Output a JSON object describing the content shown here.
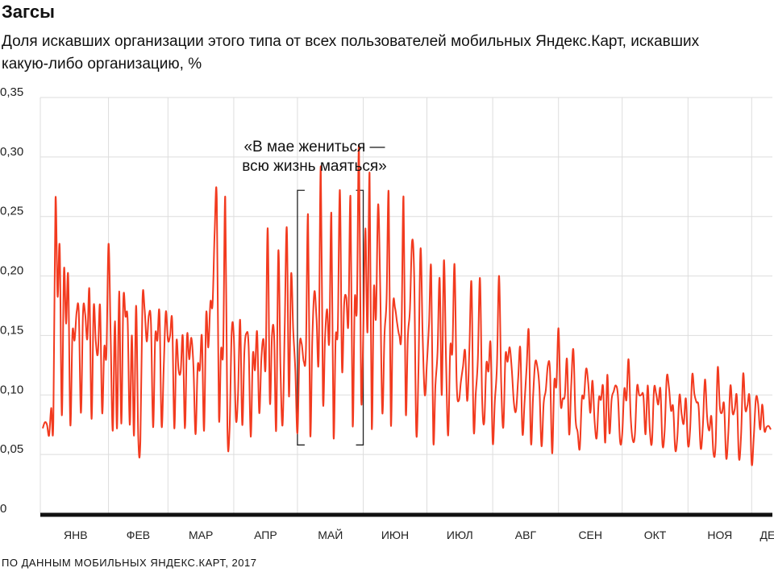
{
  "header": {
    "title": "Загсы",
    "subtitle": "Доля искавших организации этого типа от всех пользователей мобильных Яндекс.Карт, искавших какую-либо организацию, %"
  },
  "annotation": {
    "line1": "«В мае жениться —",
    "line2": "всю жизнь маяться»"
  },
  "source": "ПО ДАННЫМ МОБИЛЬНЫХ ЯНДЕКС.КАРТ, 2017",
  "colors": {
    "series": "#f23a1f",
    "grid": "#dddddd",
    "axis": "#111111"
  },
  "chart_data": {
    "type": "line",
    "ylim": [
      0,
      0.35
    ],
    "yticks": [
      {
        "value": 0,
        "label": "0"
      },
      {
        "value": 0.05,
        "label": "0,05"
      },
      {
        "value": 0.1,
        "label": "0,10"
      },
      {
        "value": 0.15,
        "label": "0,15"
      },
      {
        "value": 0.2,
        "label": "0,20"
      },
      {
        "value": 0.25,
        "label": "0,25"
      },
      {
        "value": 0.3,
        "label": "0,30"
      },
      {
        "value": 0.35,
        "label": "0,35"
      }
    ],
    "months": [
      "ЯНВ",
      "ФЕВ",
      "МАР",
      "АПР",
      "МАЙ",
      "ИЮН",
      "ИЮЛ",
      "АВГ",
      "СЕН",
      "ОКТ",
      "НОЯ",
      "ДЕК"
    ],
    "bracket": {
      "start_day": 120,
      "end_day": 151,
      "ymin": 0.058,
      "ymax": 0.272
    },
    "x_start": "2017-01-01",
    "values": [
      0.072,
      0.077,
      0.075,
      0.066,
      0.089,
      0.077,
      0.264,
      0.183,
      0.224,
      0.083,
      0.205,
      0.16,
      0.2,
      0.075,
      0.152,
      0.146,
      0.17,
      0.169,
      0.085,
      0.17,
      0.168,
      0.147,
      0.188,
      0.08,
      0.174,
      0.145,
      0.135,
      0.175,
      0.085,
      0.14,
      0.134,
      0.227,
      0.15,
      0.07,
      0.162,
      0.072,
      0.187,
      0.076,
      0.181,
      0.166,
      0.163,
      0.075,
      0.15,
      0.066,
      0.175,
      0.065,
      0.061,
      0.18,
      0.172,
      0.145,
      0.167,
      0.16,
      0.073,
      0.149,
      0.146,
      0.169,
      0.074,
      0.123,
      0.17,
      0.146,
      0.15,
      0.162,
      0.072,
      0.145,
      0.121,
      0.12,
      0.149,
      0.072,
      0.15,
      0.13,
      0.148,
      0.124,
      0.067,
      0.124,
      0.121,
      0.149,
      0.07,
      0.168,
      0.14,
      0.178,
      0.176,
      0.237,
      0.265,
      0.082,
      0.138,
      0.138,
      0.266,
      0.073,
      0.07,
      0.152,
      0.15,
      0.08,
      0.1,
      0.163,
      0.075,
      0.136,
      0.152,
      0.141,
      0.065,
      0.134,
      0.121,
      0.153,
      0.085,
      0.13,
      0.147,
      0.124,
      0.24,
      0.095,
      0.15,
      0.15,
      0.071,
      0.221,
      0.123,
      0.075,
      0.156,
      0.24,
      0.099,
      0.201,
      0.155,
      0.121,
      0.068,
      0.14,
      0.143,
      0.128,
      0.138,
      0.251,
      0.068,
      0.147,
      0.187,
      0.164,
      0.13,
      0.292,
      0.097,
      0.148,
      0.172,
      0.145,
      0.252,
      0.066,
      0.148,
      0.155,
      0.272,
      0.122,
      0.176,
      0.182,
      0.16,
      0.266,
      0.075,
      0.18,
      0.173,
      0.309,
      0.1,
      0.15,
      0.24,
      0.153,
      0.286,
      0.073,
      0.189,
      0.165,
      0.26,
      0.19,
      0.085,
      0.15,
      0.181,
      0.269,
      0.076,
      0.173,
      0.173,
      0.16,
      0.15,
      0.153,
      0.266,
      0.087,
      0.148,
      0.172,
      0.229,
      0.2,
      0.068,
      0.119,
      0.223,
      0.149,
      0.1,
      0.127,
      0.16,
      0.206,
      0.062,
      0.108,
      0.136,
      0.198,
      0.1,
      0.213,
      0.13,
      0.066,
      0.14,
      0.137,
      0.21,
      0.111,
      0.095,
      0.111,
      0.124,
      0.137,
      0.095,
      0.138,
      0.194,
      0.072,
      0.101,
      0.13,
      0.198,
      0.098,
      0.077,
      0.126,
      0.12,
      0.143,
      0.06,
      0.095,
      0.125,
      0.2,
      0.11,
      0.073,
      0.133,
      0.128,
      0.14,
      0.121,
      0.093,
      0.087,
      0.114,
      0.139,
      0.068,
      0.094,
      0.124,
      0.153,
      0.06,
      0.098,
      0.127,
      0.124,
      0.106,
      0.057,
      0.093,
      0.104,
      0.125,
      0.12,
      0.051,
      0.111,
      0.108,
      0.156,
      0.093,
      0.097,
      0.1,
      0.13,
      0.067,
      0.109,
      0.138,
      0.081,
      0.069,
      0.055,
      0.097,
      0.098,
      0.122,
      0.11,
      0.085,
      0.112,
      0.078,
      0.064,
      0.097,
      0.096,
      0.107,
      0.06,
      0.117,
      0.068,
      0.096,
      0.103,
      0.108,
      0.099,
      0.061,
      0.067,
      0.105,
      0.096,
      0.13,
      0.082,
      0.062,
      0.067,
      0.107,
      0.1,
      0.1,
      0.099,
      0.067,
      0.108,
      0.071,
      0.06,
      0.105,
      0.101,
      0.092,
      0.105,
      0.058,
      0.07,
      0.115,
      0.107,
      0.087,
      0.09,
      0.054,
      0.065,
      0.1,
      0.084,
      0.076,
      0.097,
      0.058,
      0.071,
      0.117,
      0.101,
      0.094,
      0.09,
      0.055,
      0.074,
      0.113,
      0.082,
      0.07,
      0.082,
      0.051,
      0.058,
      0.123,
      0.09,
      0.085,
      0.092,
      0.047,
      0.068,
      0.108,
      0.085,
      0.088,
      0.099,
      0.047,
      0.066,
      0.118,
      0.088,
      0.091,
      0.098,
      0.042,
      0.065,
      0.097,
      0.093,
      0.071,
      0.092,
      0.07,
      0.073,
      0.074,
      0.071
    ]
  }
}
